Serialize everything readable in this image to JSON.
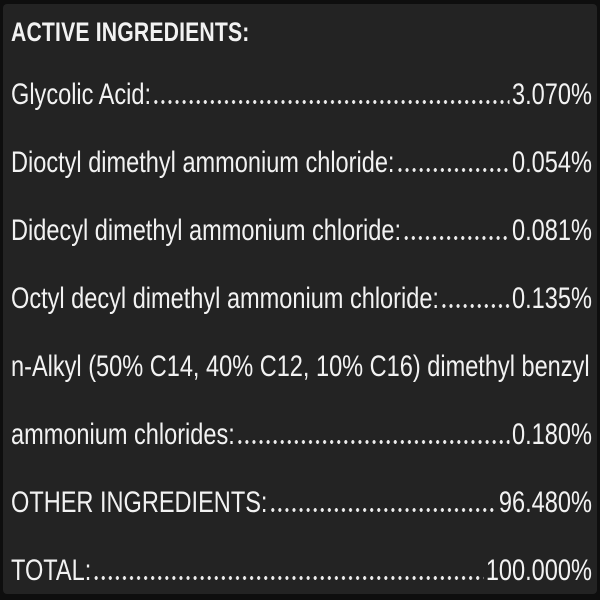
{
  "label_panel": {
    "title": "ACTIVE INGREDIENTS:",
    "ingredients": [
      {
        "label": "Glycolic Acid:",
        "value": "3.070%"
      },
      {
        "label": "Dioctyl dimethyl ammonium chloride:",
        "value": "0.054%"
      },
      {
        "label": "Didecyl dimethyl ammonium chloride:",
        "value": "0.081%"
      },
      {
        "label": "Octyl decyl dimethyl ammonium chloride:",
        "value": "0.135%"
      },
      {
        "label": "n-Alkyl (50% C14, 40% C12, 10% C16) dimethyl benzyl",
        "value": ""
      },
      {
        "label": "ammonium chlorides:",
        "value": "0.180%"
      },
      {
        "label": "OTHER INGREDIENTS:",
        "value": "96.480%"
      },
      {
        "label": "TOTAL:",
        "value": "100.000%"
      }
    ],
    "colors": {
      "panel_background": "#232323",
      "frame": "#0d0d0d",
      "text": "#f2f2f2"
    }
  }
}
